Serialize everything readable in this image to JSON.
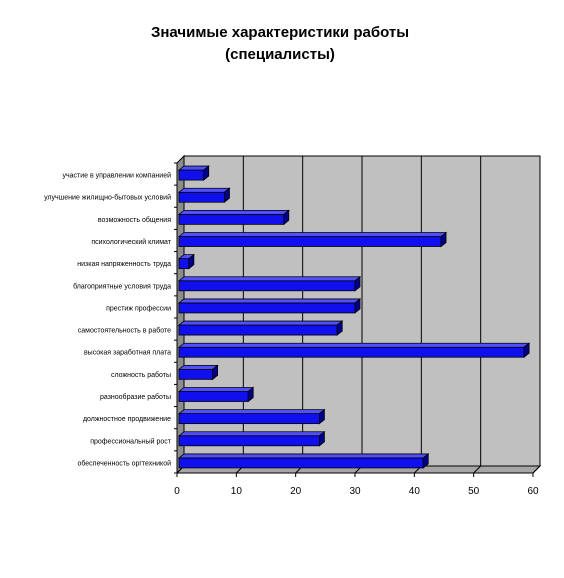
{
  "chart_data": {
    "type": "bar",
    "orientation": "horizontal",
    "style": "3d",
    "title_line1": "Значимые характеристики работы",
    "title_line2": "(специалисты)",
    "categories": [
      "участие в управлении компанией",
      "улучшение жилищно-бытовых условий",
      "возможность общения",
      "психологический климат",
      "низкая напряженность труда",
      "благоприятные условия труда",
      "престиж профессии",
      "самостоятельность в работе",
      "высокая заработная плата",
      "сложность работы",
      "разнообразие работы",
      "должностное продвижение",
      "профессиональный рост",
      "обеспеченность оргтехникой"
    ],
    "values": [
      4.5,
      8,
      18,
      44.5,
      2,
      30,
      30,
      27,
      58.5,
      6,
      12,
      24,
      24,
      41.5
    ],
    "xlim": [
      0,
      60
    ],
    "xticks": [
      "0",
      "10",
      "20",
      "30",
      "40",
      "50",
      "60"
    ],
    "colors": {
      "bar_front": "#1010ee",
      "bar_top": "#5050ff",
      "bar_side": "#000088",
      "plot_back": "#c0c0c0",
      "plot_floor": "#a6a6a6",
      "plot_wall": "#8c8c8c"
    },
    "grid": true,
    "legend": "none"
  }
}
